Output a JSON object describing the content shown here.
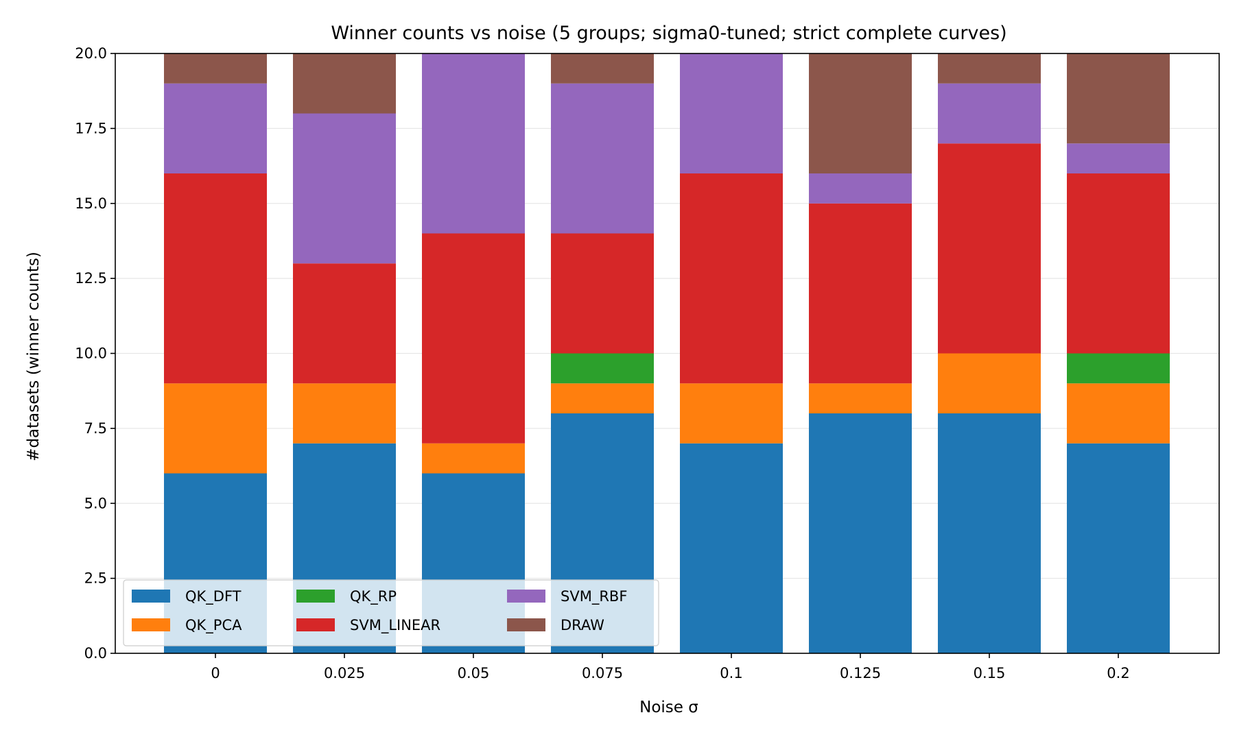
{
  "chart_data": {
    "type": "bar",
    "stacked": true,
    "title": "Winner counts vs noise (5 groups; sigma0-tuned; strict complete curves)",
    "xlabel": "Noise σ",
    "ylabel": "#datasets (winner counts)",
    "categories": [
      "0",
      "0.025",
      "0.05",
      "0.075",
      "0.1",
      "0.125",
      "0.15",
      "0.2"
    ],
    "ylim": [
      0,
      20
    ],
    "yticks": [
      "0.0",
      "2.5",
      "5.0",
      "7.5",
      "10.0",
      "12.5",
      "15.0",
      "17.5",
      "20.0"
    ],
    "ytick_values": [
      0,
      2.5,
      5,
      7.5,
      10,
      12.5,
      15,
      17.5,
      20
    ],
    "grid": "horizontal",
    "legend_position": "lower-left",
    "series": [
      {
        "name": "QK_DFT",
        "color": "#1f77b4",
        "values": [
          6,
          7,
          6,
          8,
          7,
          8,
          8,
          7
        ]
      },
      {
        "name": "QK_PCA",
        "color": "#ff7f0e",
        "values": [
          3,
          2,
          1,
          1,
          2,
          1,
          2,
          2
        ]
      },
      {
        "name": "QK_RP",
        "color": "#2ca02c",
        "values": [
          0,
          0,
          0,
          1,
          0,
          0,
          0,
          1
        ]
      },
      {
        "name": "SVM_LINEAR",
        "color": "#d62728",
        "values": [
          7,
          4,
          7,
          4,
          7,
          6,
          7,
          6
        ]
      },
      {
        "name": "SVM_RBF",
        "color": "#9467bd",
        "values": [
          3,
          5,
          6,
          5,
          4,
          1,
          2,
          1
        ]
      },
      {
        "name": "DRAW",
        "color": "#8c564b",
        "values": [
          1,
          2,
          0,
          1,
          0,
          4,
          1,
          3
        ]
      }
    ]
  }
}
